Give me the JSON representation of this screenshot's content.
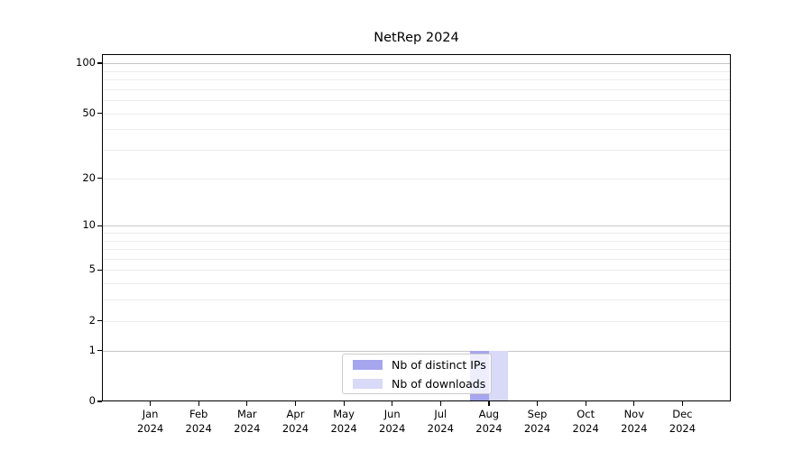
{
  "title": "NetRep 2024",
  "chart_data": {
    "type": "bar",
    "title": "NetRep 2024",
    "x_months": [
      "Jan",
      "Feb",
      "Mar",
      "Apr",
      "May",
      "Jun",
      "Jul",
      "Aug",
      "Sep",
      "Oct",
      "Nov",
      "Dec"
    ],
    "x_year": "2024",
    "series": [
      {
        "name": "Nb of distinct IPs",
        "color": "#a6a6ee",
        "values": [
          0,
          0,
          0,
          0,
          0,
          0,
          0,
          1,
          0,
          0,
          0,
          0
        ]
      },
      {
        "name": "Nb of downloads",
        "color": "#d9d9f8",
        "values": [
          0,
          0,
          0,
          0,
          0,
          0,
          0,
          1,
          0,
          0,
          0,
          0
        ]
      }
    ],
    "y_scale": "log1p",
    "ylim": [
      0,
      100
    ],
    "y_tick_labels": [
      0,
      1,
      2,
      5,
      10,
      20,
      50,
      100
    ],
    "y_grid_major": [
      1,
      10,
      100
    ],
    "y_grid_minor": [
      2,
      3,
      4,
      5,
      6,
      7,
      8,
      9,
      20,
      30,
      40,
      50,
      60,
      70,
      80,
      90
    ],
    "grid": true,
    "legend_position": "lower center"
  },
  "colors": {
    "grid_major": "#c6c6c6",
    "grid_minor": "#ececec",
    "spine": "#000000",
    "background": "#ffffff",
    "legend_border": "#cccccc"
  }
}
